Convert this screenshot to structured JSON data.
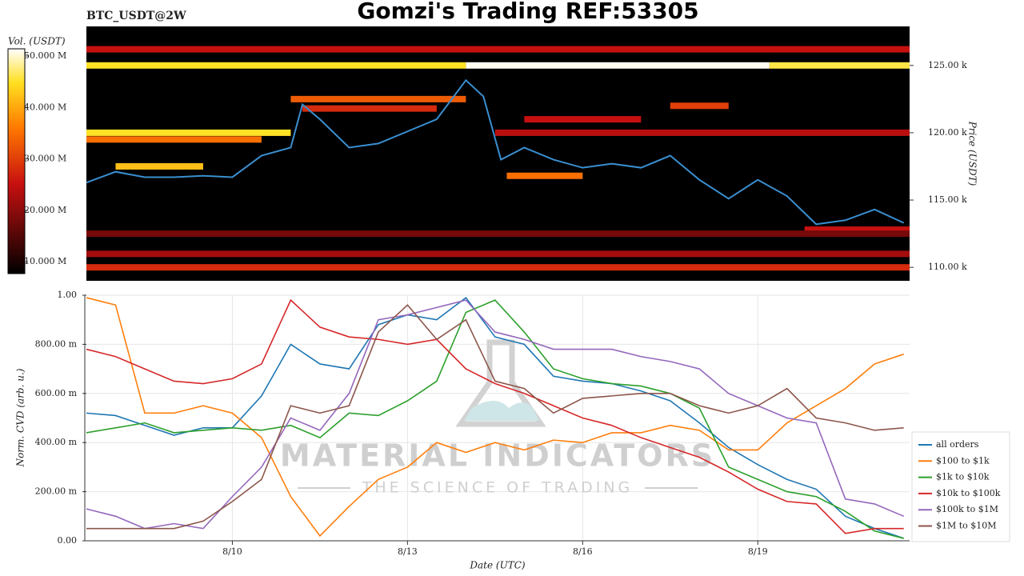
{
  "chart_data": [
    {
      "type": "heatmap",
      "title": "Gomzi's Trading REF:53305",
      "subtitle": "BTC_USDT@2W",
      "y_label": "Price (USDT)",
      "xlim": [
        7.5,
        21.6
      ],
      "ylim": [
        109000,
        127900
      ],
      "yticks": [
        {
          "value": 110000,
          "label": "110.00 k"
        },
        {
          "value": 115000,
          "label": "115.00 k"
        },
        {
          "value": 120000,
          "label": "120.00 k"
        },
        {
          "value": 125000,
          "label": "125.00 k"
        }
      ],
      "colorbar": {
        "label": "Vol. (USDT)",
        "lim": [
          7700000,
          51400000
        ],
        "ticks": [
          {
            "value": 10000000,
            "label": "10.000 M"
          },
          {
            "value": 20000000,
            "label": "20.000 M"
          },
          {
            "value": 30000000,
            "label": "30.000 M"
          },
          {
            "value": 40000000,
            "label": "40.000 M"
          },
          {
            "value": 50000000,
            "label": "50.000 M"
          }
        ]
      },
      "levels": [
        {
          "price": 126200,
          "start": 7.5,
          "end": 21.6,
          "volume": 25000000
        },
        {
          "price": 125000,
          "start": 7.5,
          "end": 14.0,
          "volume": 45000000
        },
        {
          "price": 125000,
          "start": 14.0,
          "end": 19.2,
          "volume": 51000000
        },
        {
          "price": 125000,
          "start": 19.2,
          "end": 21.6,
          "volume": 46000000
        },
        {
          "price": 122500,
          "start": 11.0,
          "end": 14.0,
          "volume": 33000000
        },
        {
          "price": 121800,
          "start": 11.2,
          "end": 13.5,
          "volume": 28000000
        },
        {
          "price": 122000,
          "start": 17.5,
          "end": 18.5,
          "volume": 30000000
        },
        {
          "price": 121000,
          "start": 15.0,
          "end": 17.0,
          "volume": 25000000
        },
        {
          "price": 120000,
          "start": 7.5,
          "end": 11.0,
          "volume": 45000000
        },
        {
          "price": 120000,
          "start": 14.5,
          "end": 21.6,
          "volume": 24000000
        },
        {
          "price": 119500,
          "start": 7.5,
          "end": 10.5,
          "volume": 35000000
        },
        {
          "price": 117500,
          "start": 8.0,
          "end": 9.5,
          "volume": 42000000
        },
        {
          "price": 116800,
          "start": 14.7,
          "end": 16.0,
          "volume": 35000000
        },
        {
          "price": 112800,
          "start": 19.8,
          "end": 21.6,
          "volume": 25000000
        },
        {
          "price": 112500,
          "start": 7.5,
          "end": 21.6,
          "volume": 18000000
        },
        {
          "price": 111000,
          "start": 7.5,
          "end": 21.6,
          "volume": 22000000
        },
        {
          "price": 110000,
          "start": 7.5,
          "end": 21.6,
          "volume": 28000000
        }
      ],
      "line": {
        "color": "#3a8fd0",
        "x": [
          7.5,
          8.0,
          8.5,
          9.0,
          9.5,
          10.0,
          10.5,
          11.0,
          11.2,
          11.5,
          12.0,
          12.5,
          13.0,
          13.5,
          14.0,
          14.3,
          14.6,
          15.0,
          15.5,
          16.0,
          16.5,
          17.0,
          17.5,
          18.0,
          18.5,
          19.0,
          19.5,
          20.0,
          20.5,
          21.0,
          21.5
        ],
        "values": [
          116300,
          117100,
          116700,
          116700,
          116800,
          116700,
          118300,
          118900,
          122100,
          121000,
          118900,
          119200,
          120100,
          121000,
          123900,
          122700,
          118000,
          118900,
          118000,
          117400,
          117700,
          117400,
          118300,
          116500,
          115100,
          116500,
          115300,
          113200,
          113500,
          114300,
          113300
        ]
      }
    },
    {
      "type": "line",
      "y_label": "Norm. CVD (arb. u.)",
      "x_label": "Date (UTC)",
      "watermark": [
        "MATERIAL INDICATORS",
        "THE SCIENCE OF TRADING"
      ],
      "xlim": [
        7.5,
        21.6
      ],
      "xticks": [
        {
          "value": 10,
          "label": "8/10"
        },
        {
          "value": 13,
          "label": "8/13"
        },
        {
          "value": 16,
          "label": "8/16"
        },
        {
          "value": 19,
          "label": "8/19"
        }
      ],
      "ylim": [
        0,
        1
      ],
      "yticks": [
        {
          "value": 0,
          "label": "0.00"
        },
        {
          "value": 0.2,
          "label": "200.00 m"
        },
        {
          "value": 0.4,
          "label": "400.00 m"
        },
        {
          "value": 0.6,
          "label": "600.00 m"
        },
        {
          "value": 0.8,
          "label": "800.00 m"
        },
        {
          "value": 1,
          "label": "1.00"
        }
      ],
      "grid": true,
      "legend": "right",
      "x": [
        7.5,
        8.0,
        8.5,
        9.0,
        9.5,
        10.0,
        10.5,
        11.0,
        11.5,
        12.0,
        12.5,
        13.0,
        13.5,
        14.0,
        14.5,
        15.0,
        15.5,
        16.0,
        16.5,
        17.0,
        17.5,
        18.0,
        18.5,
        19.0,
        19.5,
        20.0,
        20.5,
        21.0,
        21.5
      ],
      "series": [
        {
          "name": "all orders",
          "color": "#1f77b4",
          "values": [
            0.52,
            0.51,
            0.47,
            0.43,
            0.46,
            0.46,
            0.59,
            0.8,
            0.72,
            0.7,
            0.88,
            0.92,
            0.9,
            0.99,
            0.83,
            0.8,
            0.67,
            0.65,
            0.64,
            0.61,
            0.57,
            0.48,
            0.38,
            0.31,
            0.25,
            0.21,
            0.1,
            0.05,
            0.01
          ]
        },
        {
          "name": "$100 to $1k",
          "color": "#ff7f0e",
          "values": [
            0.99,
            0.96,
            0.52,
            0.52,
            0.55,
            0.52,
            0.42,
            0.18,
            0.02,
            0.14,
            0.25,
            0.3,
            0.4,
            0.36,
            0.4,
            0.37,
            0.41,
            0.4,
            0.44,
            0.44,
            0.47,
            0.45,
            0.37,
            0.37,
            0.48,
            0.55,
            0.62,
            0.72,
            0.76
          ]
        },
        {
          "name": "$1k to $10k",
          "color": "#2ca02c",
          "values": [
            0.44,
            0.46,
            0.48,
            0.44,
            0.45,
            0.46,
            0.45,
            0.47,
            0.42,
            0.52,
            0.51,
            0.57,
            0.65,
            0.93,
            0.98,
            0.85,
            0.7,
            0.66,
            0.64,
            0.63,
            0.6,
            0.54,
            0.3,
            0.25,
            0.2,
            0.18,
            0.12,
            0.04,
            0.01
          ]
        },
        {
          "name": "$10k to $100k",
          "color": "#d62728",
          "values": [
            0.78,
            0.75,
            0.7,
            0.65,
            0.64,
            0.66,
            0.72,
            0.98,
            0.87,
            0.83,
            0.82,
            0.8,
            0.82,
            0.7,
            0.64,
            0.6,
            0.55,
            0.5,
            0.47,
            0.42,
            0.38,
            0.34,
            0.28,
            0.21,
            0.16,
            0.15,
            0.03,
            0.05,
            0.05
          ]
        },
        {
          "name": "$100k to $1M",
          "color": "#9467bd",
          "values": [
            0.13,
            0.1,
            0.05,
            0.07,
            0.05,
            0.18,
            0.3,
            0.5,
            0.45,
            0.6,
            0.9,
            0.92,
            0.95,
            0.98,
            0.85,
            0.82,
            0.78,
            0.78,
            0.78,
            0.75,
            0.73,
            0.7,
            0.6,
            0.55,
            0.5,
            0.48,
            0.17,
            0.15,
            0.1
          ]
        },
        {
          "name": "$1M to $10M",
          "color": "#8c564b",
          "values": [
            0.05,
            0.05,
            0.05,
            0.05,
            0.08,
            0.16,
            0.25,
            0.55,
            0.52,
            0.55,
            0.85,
            0.96,
            0.82,
            0.9,
            0.65,
            0.62,
            0.52,
            0.58,
            0.59,
            0.6,
            0.6,
            0.55,
            0.52,
            0.55,
            0.62,
            0.5,
            0.48,
            0.45,
            0.46
          ]
        }
      ]
    }
  ]
}
